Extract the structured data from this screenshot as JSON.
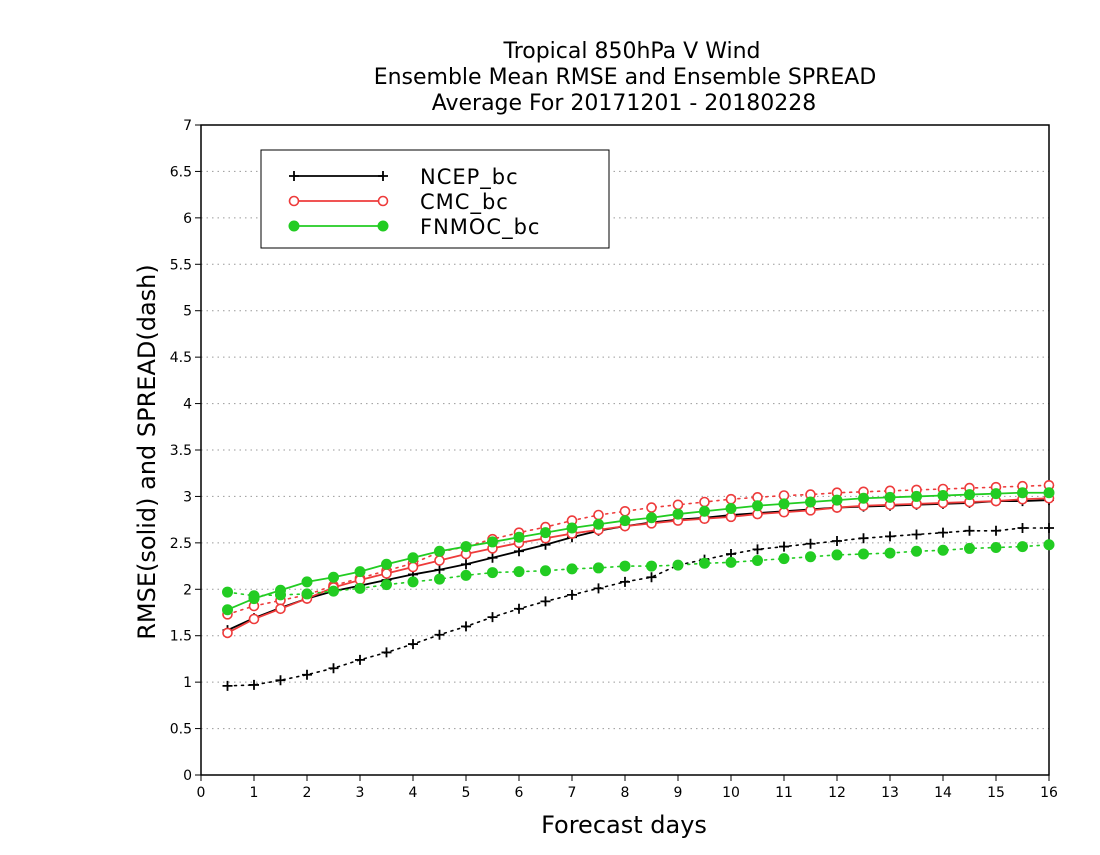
{
  "chart_data": {
    "type": "line",
    "title_lines": [
      "Tropical 850hPa V Wind",
      "Ensemble Mean RMSE and Ensemble SPREAD",
      "Average For 20171201 - 20180228"
    ],
    "xlabel": "Forecast days",
    "ylabel": "RMSE(solid) and SPREAD(dash)",
    "xlim": [
      0,
      16
    ],
    "ylim": [
      0,
      7
    ],
    "x_ticks": [
      "0",
      "1",
      "2",
      "3",
      "4",
      "5",
      "6",
      "7",
      "8",
      "9",
      "10",
      "11",
      "12",
      "13",
      "14",
      "15",
      "16"
    ],
    "y_ticks": [
      "0",
      "0.5",
      "1",
      "1.5",
      "2",
      "2.5",
      "3",
      "3.5",
      "4",
      "4.5",
      "5",
      "5.5",
      "6",
      "6.5",
      "7"
    ],
    "grid": "horizontal dotted",
    "legend_position": "top-left",
    "x": [
      0.5,
      1,
      1.5,
      2,
      2.5,
      3,
      3.5,
      4,
      4.5,
      5,
      5.5,
      6,
      6.5,
      7,
      7.5,
      8,
      8.5,
      9,
      9.5,
      10,
      10.5,
      11,
      11.5,
      12,
      12.5,
      13,
      13.5,
      14,
      14.5,
      15,
      15.5,
      16
    ],
    "series": [
      {
        "name": "NCEP_bc",
        "color": "#000000",
        "marker": "plus",
        "rmse": [
          1.56,
          1.69,
          1.8,
          1.9,
          1.98,
          2.04,
          2.1,
          2.16,
          2.21,
          2.27,
          2.34,
          2.41,
          2.48,
          2.56,
          2.63,
          2.68,
          2.72,
          2.75,
          2.77,
          2.8,
          2.82,
          2.84,
          2.86,
          2.88,
          2.89,
          2.9,
          2.91,
          2.92,
          2.93,
          2.95,
          2.95,
          2.96
        ],
        "spread": [
          0.96,
          0.97,
          1.02,
          1.08,
          1.15,
          1.24,
          1.32,
          1.41,
          1.51,
          1.6,
          1.7,
          1.79,
          1.87,
          1.94,
          2.01,
          2.08,
          2.13,
          2.26,
          2.32,
          2.38,
          2.43,
          2.46,
          2.49,
          2.52,
          2.55,
          2.57,
          2.59,
          2.61,
          2.63,
          2.63,
          2.66,
          2.66
        ]
      },
      {
        "name": "CMC_bc",
        "color": "#ee3b3b",
        "marker": "open-circle",
        "rmse": [
          1.53,
          1.68,
          1.79,
          1.9,
          2.02,
          2.1,
          2.17,
          2.24,
          2.31,
          2.38,
          2.44,
          2.5,
          2.55,
          2.6,
          2.64,
          2.68,
          2.71,
          2.74,
          2.76,
          2.78,
          2.81,
          2.83,
          2.85,
          2.88,
          2.9,
          2.91,
          2.92,
          2.93,
          2.94,
          2.95,
          2.97,
          2.98
        ],
        "spread": [
          1.73,
          1.82,
          1.88,
          1.94,
          2.04,
          2.12,
          2.2,
          2.28,
          2.4,
          2.46,
          2.54,
          2.61,
          2.67,
          2.74,
          2.8,
          2.84,
          2.88,
          2.91,
          2.94,
          2.97,
          2.99,
          3.01,
          3.02,
          3.04,
          3.05,
          3.06,
          3.07,
          3.08,
          3.09,
          3.1,
          3.11,
          3.12
        ]
      },
      {
        "name": "FNMOC_bc",
        "color": "#22cc22",
        "marker": "filled-circle",
        "rmse": [
          1.78,
          1.9,
          1.99,
          2.08,
          2.13,
          2.19,
          2.27,
          2.34,
          2.41,
          2.46,
          2.51,
          2.56,
          2.61,
          2.66,
          2.7,
          2.74,
          2.77,
          2.81,
          2.84,
          2.87,
          2.9,
          2.92,
          2.94,
          2.96,
          2.98,
          2.99,
          3.0,
          3.01,
          3.02,
          3.03,
          3.04,
          3.04
        ],
        "spread": [
          1.97,
          1.93,
          1.94,
          1.95,
          1.98,
          2.01,
          2.05,
          2.08,
          2.11,
          2.15,
          2.18,
          2.19,
          2.2,
          2.22,
          2.23,
          2.25,
          2.25,
          2.26,
          2.28,
          2.29,
          2.31,
          2.33,
          2.35,
          2.37,
          2.38,
          2.39,
          2.41,
          2.42,
          2.44,
          2.45,
          2.46,
          2.48
        ]
      }
    ]
  }
}
